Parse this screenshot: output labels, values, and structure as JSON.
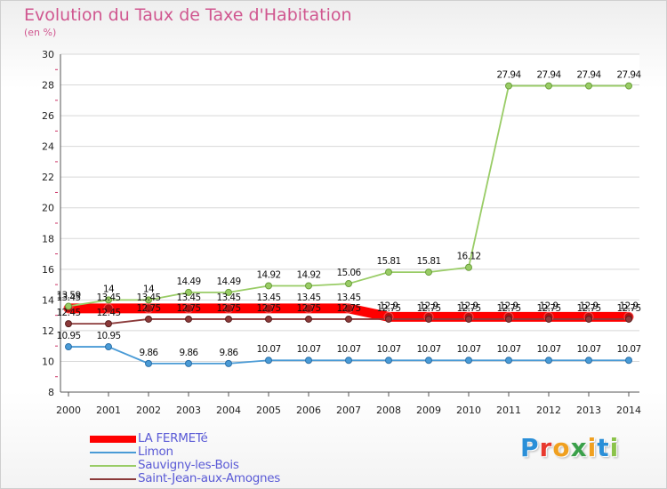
{
  "chart_data": {
    "type": "line",
    "title": "Evolution du Taux de Taxe d'Habitation",
    "ylabel": "(en %)",
    "xlabel": "",
    "x": [
      "2000",
      "2001",
      "2002",
      "2003",
      "2004",
      "2005",
      "2006",
      "2007",
      "2008",
      "2009",
      "2010",
      "2011",
      "2012",
      "2013",
      "2014"
    ],
    "ylim": [
      8,
      30
    ],
    "yticks": [
      8,
      10,
      12,
      14,
      16,
      18,
      20,
      22,
      24,
      26,
      28,
      30
    ],
    "grid": "horizontal",
    "legend_position": "bottom-left",
    "series": [
      {
        "name": "LA FERMETé",
        "color": "#ff0000",
        "values": [
          13.45,
          13.45,
          13.45,
          13.45,
          13.45,
          13.45,
          13.45,
          13.45,
          12.9,
          12.9,
          12.9,
          12.9,
          12.9,
          12.9,
          12.9
        ],
        "labels": [
          "13.45",
          "13.45",
          "13.45",
          "13.45",
          "13.45",
          "13.45",
          "13.45",
          "13.45",
          "12.9",
          "12.9",
          "12.9",
          "12.9",
          "12.9",
          "12.9",
          "12.9"
        ]
      },
      {
        "name": "Limon",
        "color": "#4a9bd6",
        "values": [
          10.95,
          10.95,
          9.86,
          9.86,
          9.86,
          10.07,
          10.07,
          10.07,
          10.07,
          10.07,
          10.07,
          10.07,
          10.07,
          10.07,
          10.07
        ],
        "labels": [
          "10.95",
          "10.95",
          "9.86",
          "9.86",
          "9.86",
          "10.07",
          "10.07",
          "10.07",
          "10.07",
          "10.07",
          "10.07",
          "10.07",
          "10.07",
          "10.07",
          "10.07"
        ]
      },
      {
        "name": "Sauvigny-les-Bois",
        "color": "#99cc66",
        "values": [
          13.59,
          14,
          14,
          14.49,
          14.49,
          14.92,
          14.92,
          15.06,
          15.81,
          15.81,
          16.12,
          27.94,
          27.94,
          27.94,
          27.94
        ],
        "labels": [
          "13.59",
          "14",
          "14",
          "14.49",
          "14.49",
          "14.92",
          "14.92",
          "15.06",
          "15.81",
          "15.81",
          "16.12",
          "27.94",
          "27.94",
          "27.94",
          "27.94"
        ]
      },
      {
        "name": "Saint-Jean-aux-Amognes",
        "color": "#8b3a3a",
        "values": [
          12.45,
          12.45,
          12.75,
          12.75,
          12.75,
          12.75,
          12.75,
          12.75,
          12.75,
          12.75,
          12.75,
          12.75,
          12.75,
          12.75,
          12.75
        ],
        "labels": [
          "12.45",
          "12.45",
          "12.75",
          "12.75",
          "12.75",
          "12.75",
          "12.75",
          "12.75",
          "12.75",
          "12.75",
          "12.75",
          "12.75",
          "12.75",
          "12.75",
          "12.75"
        ]
      }
    ]
  },
  "logo": {
    "letters": [
      "P",
      "r",
      "o",
      "x",
      "i",
      "t",
      "i"
    ],
    "colors": [
      "#2a8fd8",
      "#e8392e",
      "#f0a020",
      "#3aa04a",
      "#f0a020",
      "#2a8fd8",
      "#8bc34a"
    ]
  }
}
